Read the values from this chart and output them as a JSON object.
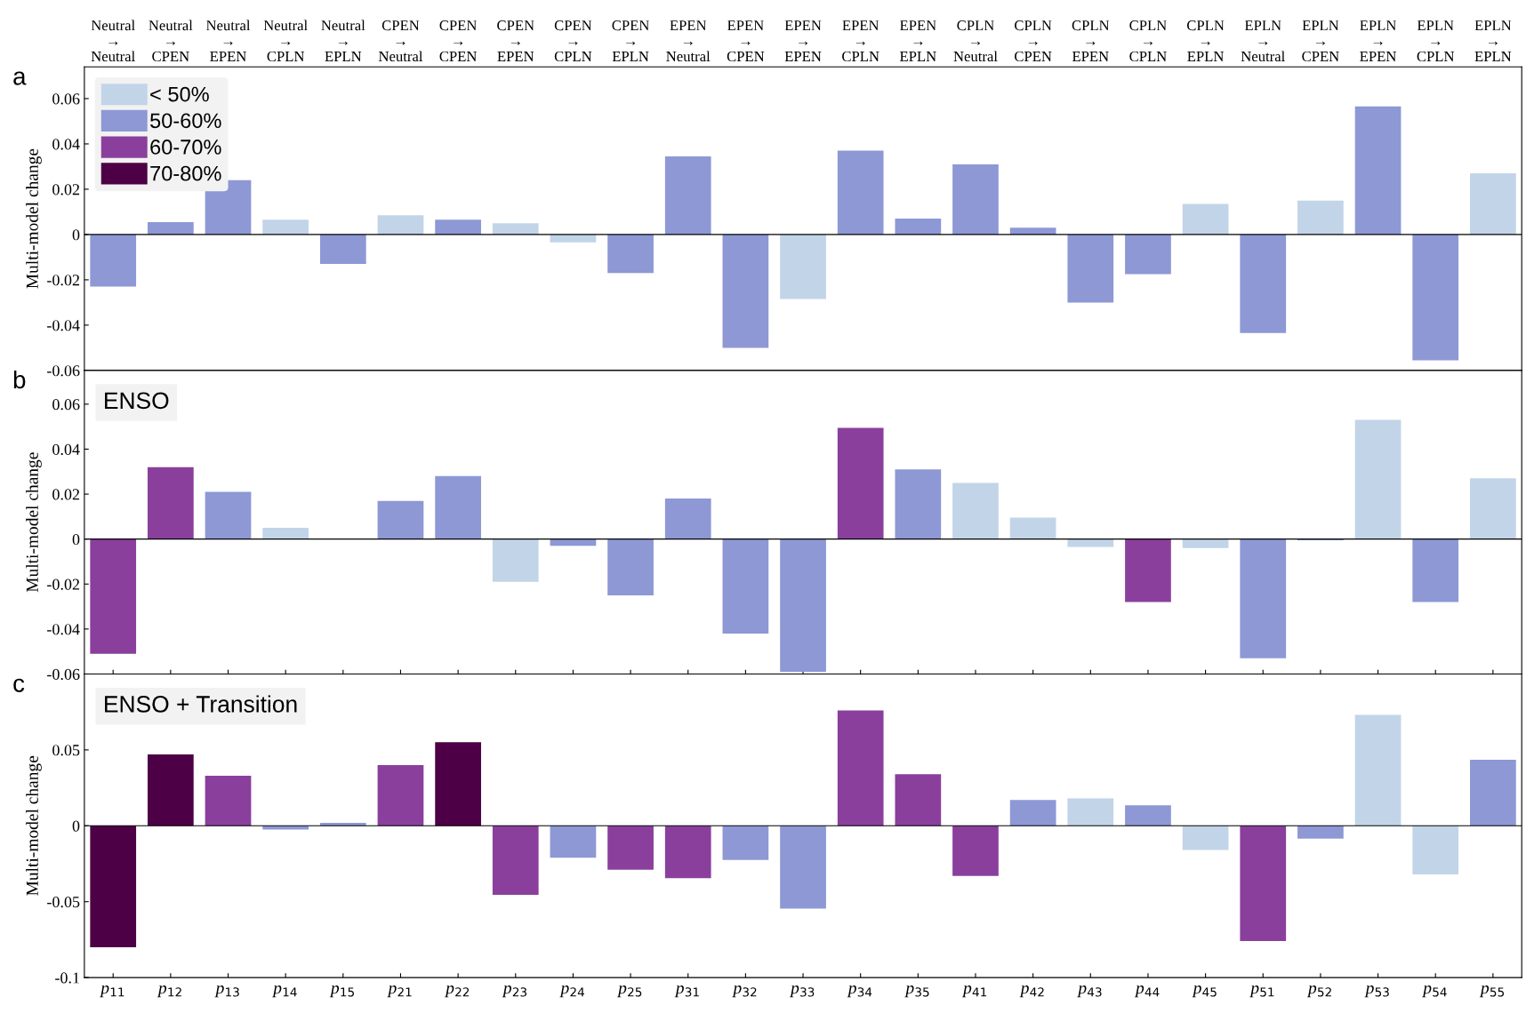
{
  "chart_data": [
    {
      "type": "bar",
      "annotations": [
        "a"
      ],
      "ylabel": "Multi-model change",
      "categories": [
        "Neutral\n→\nNeutral",
        "Neutral\n→\nCPEN",
        "Neutral\n→\nEPEN",
        "Neutral\n→\nCPLN",
        "Neutral\n→\nEPLN",
        "CPEN\n→\nNeutral",
        "CPEN\n→\nCPEN",
        "CPEN\n→\nEPEN",
        "CPEN\n→\nCPLN",
        "CPEN\n→\nEPLN",
        "EPEN\n→\nNeutral",
        "EPEN\n→\nCPEN",
        "EPEN\n→\nEPEN",
        "EPEN\n→\nCPLN",
        "EPEN\n→\nEPLN",
        "CPLN\n→\nNeutral",
        "CPLN\n→\nCPEN",
        "CPLN\n→\nEPEN",
        "CPLN\n→\nCPLN",
        "CPLN\n→\nEPLN",
        "EPLN\n→\nNeutral",
        "EPLN\n→\nCPEN",
        "EPLN\n→\nEPEN",
        "EPLN\n→\nCPLN",
        "EPLN\n→\nEPLN"
      ],
      "series": [
        {
          "name": "< 50%",
          "color": "#c2d4e8",
          "values": [
            null,
            null,
            null,
            0.0065,
            null,
            0.0085,
            null,
            0.005,
            -0.0035,
            null,
            null,
            null,
            -0.0285,
            null,
            null,
            null,
            null,
            null,
            null,
            0.0135,
            null,
            0.015,
            null,
            null,
            0.027
          ]
        },
        {
          "name": "50-60%",
          "color": "#8d98d5",
          "values": [
            -0.023,
            0.0055,
            0.024,
            null,
            -0.013,
            null,
            0.0065,
            null,
            null,
            -0.017,
            0.0345,
            -0.05,
            null,
            0.037,
            0.007,
            0.031,
            0.003,
            -0.03,
            -0.0175,
            null,
            -0.0435,
            null,
            0.0566,
            -0.0555,
            null
          ]
        },
        {
          "name": "60-70%",
          "color": "#8a3f9d",
          "values": [
            null,
            null,
            null,
            null,
            null,
            null,
            null,
            null,
            null,
            null,
            null,
            null,
            null,
            null,
            null,
            null,
            null,
            null,
            null,
            null,
            null,
            null,
            null,
            null,
            null
          ]
        },
        {
          "name": "70-80%",
          "color": "#4d0046",
          "values": [
            null,
            null,
            null,
            null,
            null,
            null,
            null,
            null,
            null,
            null,
            null,
            null,
            null,
            null,
            null,
            null,
            null,
            null,
            null,
            null,
            null,
            null,
            null,
            null,
            null
          ]
        }
      ],
      "ylim": [
        -0.06,
        0.074
      ],
      "yticks": [
        -0.06,
        -0.04,
        -0.02,
        0,
        0.02,
        0.04,
        0.06
      ],
      "legend": "top left",
      "grid": false,
      "ref_lines": [
        {
          "axis": "y",
          "value": 0,
          "color": "#000000"
        }
      ]
    },
    {
      "type": "bar",
      "title": "ENSO",
      "annotations": [
        "b"
      ],
      "ylabel": "Multi-model change",
      "categories": [
        null,
        null,
        null,
        null,
        null,
        null,
        null,
        null,
        null,
        null,
        null,
        null,
        null,
        null,
        null,
        null,
        null,
        null,
        null,
        null,
        null,
        null,
        null,
        null,
        null
      ],
      "series": [
        {
          "color": "#c2d4e8",
          "values": [
            null,
            null,
            null,
            0.005,
            null,
            null,
            null,
            -0.019,
            null,
            null,
            null,
            null,
            null,
            null,
            null,
            0.025,
            0.0095,
            -0.0035,
            null,
            -0.004,
            null,
            null,
            0.053,
            null,
            0.027
          ]
        },
        {
          "color": "#8d98d5",
          "values": [
            null,
            null,
            0.021,
            null,
            null,
            0.017,
            0.028,
            null,
            -0.003,
            -0.025,
            0.018,
            -0.042,
            -0.059,
            null,
            0.031,
            null,
            null,
            null,
            null,
            null,
            -0.053,
            -0.0005,
            null,
            -0.028,
            null
          ]
        },
        {
          "color": "#8a3f9d",
          "values": [
            -0.051,
            0.032,
            null,
            null,
            null,
            null,
            null,
            null,
            null,
            null,
            null,
            null,
            null,
            0.0495,
            null,
            null,
            null,
            null,
            -0.028,
            null,
            null,
            null,
            null,
            null,
            null
          ]
        }
      ],
      "ylim": [
        -0.06,
        0.075
      ],
      "yticks": [
        -0.06,
        -0.04,
        -0.02,
        0,
        0.02,
        0.04,
        0.06
      ],
      "tick_labels": "y",
      "grid": false,
      "ref_lines": [
        {
          "axis": "y",
          "value": 0,
          "color": "#000000"
        }
      ]
    },
    {
      "type": "bar",
      "title": "ENSO + Transition",
      "annotations": [
        "c"
      ],
      "ylabel": "Multi-model change",
      "categories": [
        "p$_{11}$",
        "p$_{12}$",
        "p$_{13}$",
        "p$_{14}$",
        "p$_{15}$",
        "p$_{21}$",
        "p$_{22}$",
        "p$_{23}$",
        "p$_{24}$",
        "p$_{25}$",
        "p$_{31}$",
        "p$_{32}$",
        "p$_{33}$",
        "p$_{34}$",
        "p$_{35}$",
        "p$_{41}$",
        "p$_{42}$",
        "p$_{43}$",
        "p$_{44}$",
        "p$_{45}$",
        "p$_{51}$",
        "p$_{52}$",
        "p$_{53}$",
        "p$_{54}$",
        "p$_{55}$"
      ],
      "series": [
        {
          "color": "#c2d4e8",
          "values": [
            null,
            null,
            null,
            null,
            null,
            null,
            null,
            null,
            null,
            null,
            null,
            null,
            null,
            null,
            null,
            null,
            null,
            0.018,
            null,
            -0.016,
            null,
            null,
            0.073,
            -0.032,
            null
          ]
        },
        {
          "color": "#8d98d5",
          "values": [
            null,
            null,
            null,
            -0.0025,
            0.002,
            null,
            null,
            null,
            -0.021,
            null,
            null,
            -0.0225,
            -0.0545,
            null,
            null,
            null,
            0.017,
            null,
            0.0135,
            null,
            null,
            -0.0085,
            null,
            null,
            0.0435
          ]
        },
        {
          "color": "#8a3f9d",
          "values": [
            null,
            null,
            0.033,
            null,
            null,
            0.04,
            null,
            -0.0455,
            null,
            -0.029,
            -0.0345,
            null,
            null,
            0.076,
            0.034,
            -0.033,
            null,
            null,
            null,
            null,
            -0.076,
            null,
            null,
            null,
            null
          ]
        },
        {
          "color": "#4d0046",
          "values": [
            -0.08,
            0.047,
            null,
            null,
            null,
            null,
            0.055,
            null,
            null,
            null,
            null,
            null,
            null,
            null,
            null,
            null,
            null,
            null,
            null,
            null,
            null,
            null,
            null,
            null,
            null
          ]
        }
      ],
      "ylim": [
        -0.1,
        0.1
      ],
      "yticks": [
        -0.1,
        -0.05,
        0,
        0.05
      ],
      "grid": false,
      "ref_lines": [
        {
          "axis": "y",
          "value": 0,
          "color": "#000000"
        }
      ]
    }
  ]
}
